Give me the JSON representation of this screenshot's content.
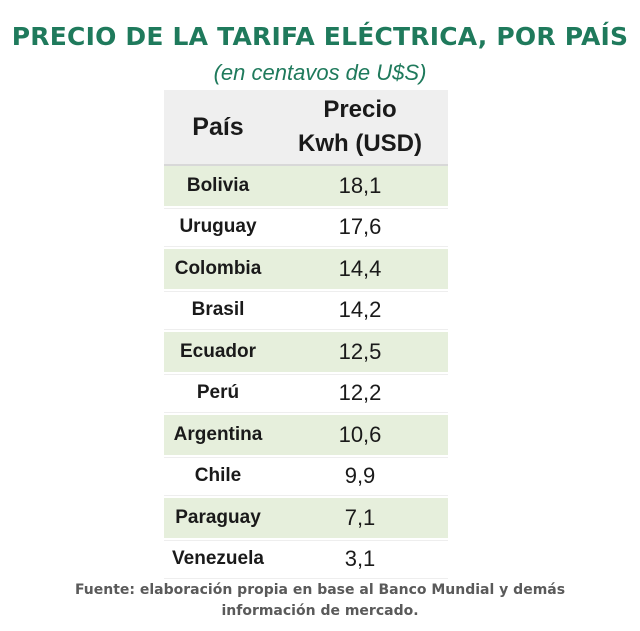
{
  "title": "PRECIO DE LA TARIFA ELÉCTRICA, POR PAÍS",
  "subtitle": "(en centavos de U$S)",
  "chart_data": {
    "type": "table",
    "columns": [
      "País",
      "Precio Kwh (USD)"
    ],
    "header_lines": {
      "col1": "País",
      "col2_line1": "Precio",
      "col2_line2": "Kwh (USD)"
    },
    "rows": [
      {
        "country": "Bolivia",
        "price": "18,1"
      },
      {
        "country": "Uruguay",
        "price": "17,6"
      },
      {
        "country": "Colombia",
        "price": "14,4"
      },
      {
        "country": "Brasil",
        "price": "14,2"
      },
      {
        "country": "Ecuador",
        "price": "12,5"
      },
      {
        "country": "Perú",
        "price": "12,2"
      },
      {
        "country": "Argentina",
        "price": "10,6"
      },
      {
        "country": "Chile",
        "price": "9,9"
      },
      {
        "country": "Paraguay",
        "price": "7,1"
      },
      {
        "country": "Venezuela",
        "price": "3,1"
      }
    ]
  },
  "source_line1": "Fuente: elaboración propia en base al Banco Mundial y demás",
  "source_line2": "información de mercado."
}
